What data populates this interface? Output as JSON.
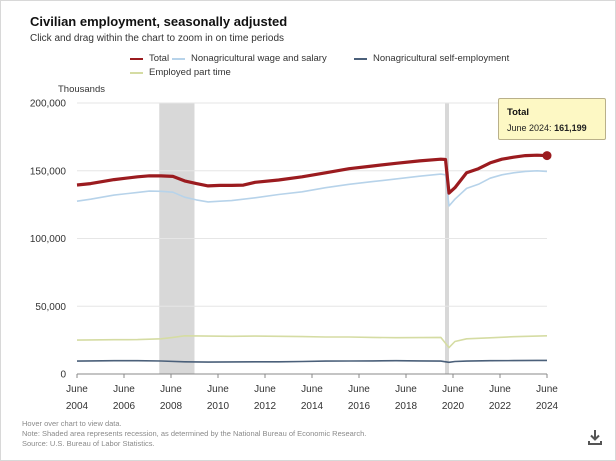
{
  "title": "Civilian employment, seasonally adjusted",
  "subtitle": "Click and drag within the chart to zoom in on time periods",
  "footer": {
    "hover_note": "Hover over chart to view data.",
    "recession_note": "Note: Shaded area represents recession, as determined by the National Bureau of Economic Research.",
    "source": "Source: U.S. Bureau of Labor Statistics."
  },
  "tooltip": {
    "series": "Total",
    "date": "June 2024",
    "value": "161,199"
  },
  "colors": {
    "total": "#9b1b1f",
    "wage": "#b7d3ea",
    "self": "#4b607a",
    "parttime": "#d5dca3",
    "recession": "#d8d8d8",
    "grid": "#e6e6e6"
  },
  "icons": {
    "download": "download-icon"
  },
  "chart_data": {
    "type": "line",
    "title": "Civilian employment, seasonally adjusted",
    "ylabel": "Thousands",
    "xlabel": "",
    "xlim": [
      2004.42,
      2024.42
    ],
    "ylim": [
      0,
      200000
    ],
    "y_ticks": [
      0,
      50000,
      100000,
      150000,
      200000
    ],
    "y_tick_labels": [
      "0",
      "50,000",
      "100,000",
      "150,000",
      "200,000"
    ],
    "x_tick_positions": [
      2004.42,
      2006.42,
      2008.42,
      2010.42,
      2012.42,
      2014.42,
      2016.42,
      2018.42,
      2020.42,
      2022.42,
      2024.42
    ],
    "x_tick_labels": [
      [
        "June",
        "2004"
      ],
      [
        "June",
        "2006"
      ],
      [
        "June",
        "2008"
      ],
      [
        "June",
        "2010"
      ],
      [
        "June",
        "2012"
      ],
      [
        "June",
        "2014"
      ],
      [
        "June",
        "2016"
      ],
      [
        "June",
        "2018"
      ],
      [
        "June",
        "2020"
      ],
      [
        "June",
        "2022"
      ],
      [
        "June",
        "2024"
      ]
    ],
    "grid": "horizontal",
    "legend": "top",
    "recessions": [
      [
        2007.92,
        2009.42
      ],
      [
        2020.08,
        2020.25
      ]
    ],
    "series": [
      {
        "name": "Total",
        "color_key": "total",
        "points": [
          [
            2004.42,
            139500
          ],
          [
            2005.0,
            140500
          ],
          [
            2006.0,
            143500
          ],
          [
            2007.0,
            145500
          ],
          [
            2007.5,
            146300
          ],
          [
            2008.0,
            146200
          ],
          [
            2008.5,
            145800
          ],
          [
            2009.0,
            142500
          ],
          [
            2009.5,
            140500
          ],
          [
            2010.0,
            138800
          ],
          [
            2010.5,
            139200
          ],
          [
            2011.0,
            139200
          ],
          [
            2011.5,
            139400
          ],
          [
            2012.0,
            141500
          ],
          [
            2013.0,
            143200
          ],
          [
            2014.0,
            145500
          ],
          [
            2015.0,
            148500
          ],
          [
            2016.0,
            151500
          ],
          [
            2017.0,
            153500
          ],
          [
            2018.0,
            155500
          ],
          [
            2019.0,
            157300
          ],
          [
            2019.9,
            158500
          ],
          [
            2020.1,
            158300
          ],
          [
            2020.25,
            133500
          ],
          [
            2020.5,
            137500
          ],
          [
            2021.0,
            148500
          ],
          [
            2021.5,
            151500
          ],
          [
            2022.0,
            155800
          ],
          [
            2022.5,
            158500
          ],
          [
            2023.0,
            160000
          ],
          [
            2023.5,
            161200
          ],
          [
            2024.0,
            161500
          ],
          [
            2024.42,
            161199
          ]
        ]
      },
      {
        "name": "Nonagricultural wage and salary",
        "color_key": "wage",
        "points": [
          [
            2004.42,
            127500
          ],
          [
            2005.0,
            129000
          ],
          [
            2006.0,
            132000
          ],
          [
            2007.0,
            134000
          ],
          [
            2007.5,
            135000
          ],
          [
            2008.0,
            134800
          ],
          [
            2008.5,
            134200
          ],
          [
            2009.0,
            130500
          ],
          [
            2009.5,
            128500
          ],
          [
            2010.0,
            127000
          ],
          [
            2010.5,
            127500
          ],
          [
            2011.0,
            128000
          ],
          [
            2012.0,
            130000
          ],
          [
            2013.0,
            132500
          ],
          [
            2014.0,
            134500
          ],
          [
            2015.0,
            137500
          ],
          [
            2016.0,
            140000
          ],
          [
            2017.0,
            142000
          ],
          [
            2018.0,
            144000
          ],
          [
            2019.0,
            146000
          ],
          [
            2019.9,
            147500
          ],
          [
            2020.1,
            147000
          ],
          [
            2020.25,
            124000
          ],
          [
            2020.5,
            129000
          ],
          [
            2021.0,
            137000
          ],
          [
            2021.5,
            140000
          ],
          [
            2022.0,
            144500
          ],
          [
            2022.5,
            147000
          ],
          [
            2023.0,
            148500
          ],
          [
            2023.5,
            149500
          ],
          [
            2024.0,
            150000
          ],
          [
            2024.42,
            149500
          ]
        ]
      },
      {
        "name": "Nonagricultural self-employment",
        "color_key": "self",
        "points": [
          [
            2004.42,
            9500
          ],
          [
            2005.0,
            9700
          ],
          [
            2006.0,
            9800
          ],
          [
            2007.0,
            9800
          ],
          [
            2008.0,
            9600
          ],
          [
            2009.0,
            9000
          ],
          [
            2010.0,
            8800
          ],
          [
            2011.0,
            8900
          ],
          [
            2012.0,
            9000
          ],
          [
            2013.0,
            9000
          ],
          [
            2014.0,
            9200
          ],
          [
            2015.0,
            9500
          ],
          [
            2016.0,
            9600
          ],
          [
            2017.0,
            9700
          ],
          [
            2018.0,
            9800
          ],
          [
            2019.0,
            9700
          ],
          [
            2019.9,
            9500
          ],
          [
            2020.25,
            8600
          ],
          [
            2020.5,
            9200
          ],
          [
            2021.0,
            9500
          ],
          [
            2022.0,
            9800
          ],
          [
            2023.0,
            9900
          ],
          [
            2024.0,
            10000
          ],
          [
            2024.42,
            10000
          ]
        ]
      },
      {
        "name": "Employed part time",
        "color_key": "parttime",
        "points": [
          [
            2004.42,
            25000
          ],
          [
            2005.0,
            25200
          ],
          [
            2006.0,
            25300
          ],
          [
            2007.0,
            25400
          ],
          [
            2008.0,
            26000
          ],
          [
            2008.5,
            27000
          ],
          [
            2009.0,
            28200
          ],
          [
            2010.0,
            28000
          ],
          [
            2011.0,
            27800
          ],
          [
            2012.0,
            28000
          ],
          [
            2013.0,
            27800
          ],
          [
            2014.0,
            27600
          ],
          [
            2015.0,
            27300
          ],
          [
            2016.0,
            27300
          ],
          [
            2017.0,
            27000
          ],
          [
            2018.0,
            26800
          ],
          [
            2019.0,
            26900
          ],
          [
            2019.9,
            27000
          ],
          [
            2020.25,
            19500
          ],
          [
            2020.5,
            24000
          ],
          [
            2021.0,
            26000
          ],
          [
            2022.0,
            26700
          ],
          [
            2023.0,
            27500
          ],
          [
            2024.0,
            28000
          ],
          [
            2024.42,
            28200
          ]
        ]
      }
    ]
  }
}
